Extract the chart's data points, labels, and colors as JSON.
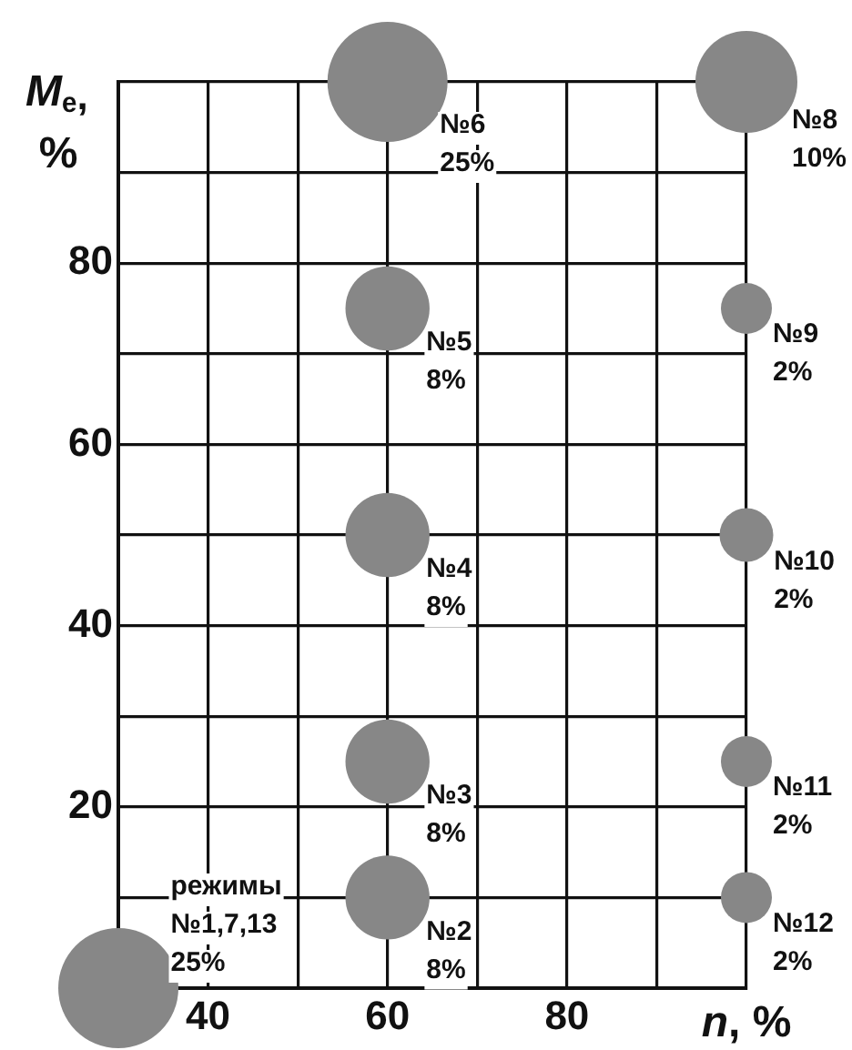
{
  "chart_data": {
    "type": "bubble",
    "xlabel": "n, %",
    "ylabel": "Mₑ, %",
    "x": [
      30,
      60,
      60,
      60,
      60,
      60,
      100,
      100,
      100,
      100,
      100
    ],
    "values": [
      0,
      10,
      25,
      50,
      75,
      100,
      100,
      75,
      50,
      25,
      10
    ],
    "sizes": [
      1,
      0.49,
      0.49,
      0.49,
      0.49,
      1,
      0.72,
      0.18,
      0.2,
      0.18,
      0.18
    ],
    "value_labels": [
      "режимы\n№1,7,13\n25%",
      "№2\n8%",
      "№3\n8%",
      "№4\n8%",
      "№5\n8%",
      "№6\n25%",
      "№8\n10%",
      "№9\n2%",
      "№10\n2%",
      "№11\n2%",
      "№12\n2%"
    ],
    "color": "#878787",
    "xlim": [
      30,
      100
    ],
    "xticks": [
      {
        "value": 30,
        "label": null
      },
      40,
      {
        "value": 50,
        "label": null
      },
      60,
      {
        "value": 70,
        "label": null
      },
      80,
      {
        "value": 90,
        "label": null
      },
      {
        "value": 100,
        "label": null
      }
    ],
    "ylim": [
      0,
      100
    ],
    "yticks": [
      {
        "value": 0,
        "label": null
      },
      {
        "value": 10,
        "label": null
      },
      20,
      {
        "value": 30,
        "label": null
      },
      40,
      {
        "value": 50,
        "label": null
      },
      60,
      {
        "value": 70,
        "label": null
      },
      80,
      {
        "value": 90,
        "label": null
      },
      {
        "value": 100,
        "label": null
      }
    ],
    "grid": true,
    "legend": false
  }
}
